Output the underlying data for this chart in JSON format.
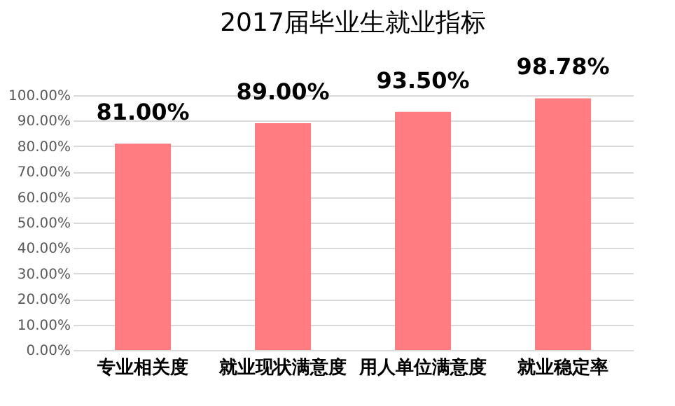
{
  "chart_data": {
    "type": "bar",
    "title": "2017届毕业生就业指标",
    "categories": [
      "专业相关度",
      "就业现状满意度",
      "用人单位满意度",
      "就业稳定率"
    ],
    "values": [
      81.0,
      89.0,
      93.5,
      98.78
    ],
    "value_labels": [
      "81.00%",
      "89.00%",
      "93.50%",
      "98.78%"
    ],
    "color": "#ff7c80",
    "ylim": [
      0,
      100
    ],
    "yticks": [
      {
        "value": 0,
        "label": "0.00%"
      },
      {
        "value": 10,
        "label": "10.00%"
      },
      {
        "value": 20,
        "label": "20.00%"
      },
      {
        "value": 30,
        "label": "30.00%"
      },
      {
        "value": 40,
        "label": "40.00%"
      },
      {
        "value": 50,
        "label": "50.00%"
      },
      {
        "value": 60,
        "label": "60.00%"
      },
      {
        "value": 70,
        "label": "70.00%"
      },
      {
        "value": 80,
        "label": "80.00%"
      },
      {
        "value": 90,
        "label": "90.00%"
      },
      {
        "value": 100,
        "label": "100.00%"
      }
    ],
    "grid": "y"
  }
}
